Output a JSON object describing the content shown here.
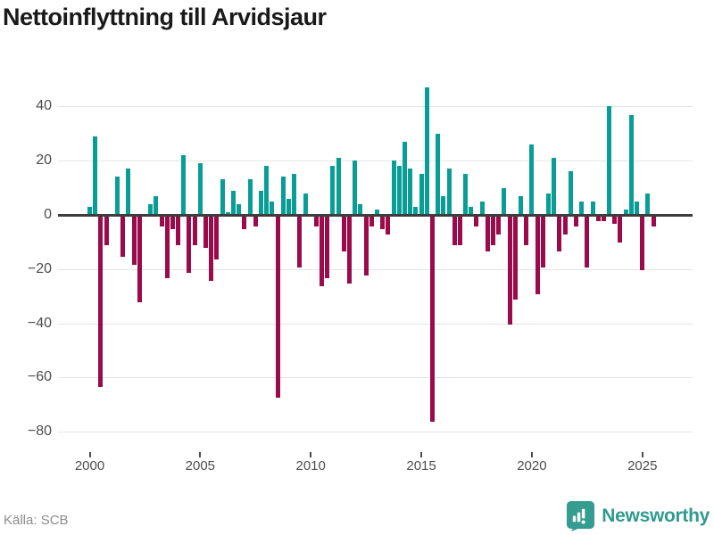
{
  "title": "Nettoinflyttning till Arvidsjaur",
  "source": "Källa: SCB",
  "brand": {
    "name": "Newsworthy",
    "color": "#2e9b8e"
  },
  "colors": {
    "positive": "#089e97",
    "negative": "#9b0a4b",
    "grid": "#e4e4e4",
    "zero_axis": "#3d3d3d",
    "title": "#1a1a1a"
  },
  "chart_data": {
    "type": "bar",
    "title": "Nettoinflyttning till Arvidsjaur",
    "xlabel": "",
    "ylabel": "",
    "period": "quarterly",
    "grid": true,
    "ylim": [
      -80,
      50
    ],
    "y_tick_values": [
      40,
      20,
      0,
      -20,
      -40,
      -60,
      -80
    ],
    "y_tick_labels": [
      "40",
      "20",
      "0",
      "−20",
      "−40",
      "−60",
      "−80"
    ],
    "x_tick_years": [
      2000,
      2005,
      2010,
      2015,
      2020,
      2025
    ],
    "x_tick_labels": [
      "2000",
      "2005",
      "2010",
      "2015",
      "2020",
      "2025"
    ],
    "series": [
      {
        "year": 2000,
        "q": [
          3,
          29,
          -63,
          -11
        ]
      },
      {
        "year": 2001,
        "q": [
          0,
          14,
          -15,
          17
        ]
      },
      {
        "year": 2002,
        "q": [
          -18,
          -32,
          0,
          4
        ]
      },
      {
        "year": 2003,
        "q": [
          7,
          -4,
          -23,
          -5
        ]
      },
      {
        "year": 2004,
        "q": [
          -11,
          22,
          -21,
          -11
        ]
      },
      {
        "year": 2005,
        "q": [
          19,
          -12,
          -24,
          -16
        ]
      },
      {
        "year": 2006,
        "q": [
          13,
          1,
          9,
          4
        ]
      },
      {
        "year": 2007,
        "q": [
          -5,
          13,
          -4,
          9
        ]
      },
      {
        "year": 2008,
        "q": [
          18,
          5,
          -67,
          14
        ]
      },
      {
        "year": 2009,
        "q": [
          6,
          15,
          -19,
          8
        ]
      },
      {
        "year": 2010,
        "q": [
          0,
          -4,
          -26,
          -23
        ]
      },
      {
        "year": 2011,
        "q": [
          18,
          21,
          -13,
          -25
        ]
      },
      {
        "year": 2012,
        "q": [
          20,
          4,
          -22,
          -4
        ]
      },
      {
        "year": 2013,
        "q": [
          2,
          -5,
          -7,
          20
        ]
      },
      {
        "year": 2014,
        "q": [
          18,
          27,
          17,
          3
        ]
      },
      {
        "year": 2015,
        "q": [
          15,
          47,
          -76,
          30
        ]
      },
      {
        "year": 2016,
        "q": [
          7,
          17,
          -11,
          -11
        ]
      },
      {
        "year": 2017,
        "q": [
          15,
          3,
          -4,
          5
        ]
      },
      {
        "year": 2018,
        "q": [
          -13,
          -11,
          -7,
          10
        ]
      },
      {
        "year": 2019,
        "q": [
          -40,
          -31,
          7,
          -11
        ]
      },
      {
        "year": 2020,
        "q": [
          26,
          -29,
          -19,
          8
        ]
      },
      {
        "year": 2021,
        "q": [
          21,
          -13,
          -7,
          16
        ]
      },
      {
        "year": 2022,
        "q": [
          -4,
          5,
          -19,
          5
        ]
      },
      {
        "year": 2023,
        "q": [
          -2,
          -2,
          40,
          -3
        ]
      },
      {
        "year": 2024,
        "q": [
          -10,
          2,
          37,
          5
        ]
      },
      {
        "year": 2025,
        "q": [
          -20,
          8,
          -4
        ]
      }
    ]
  }
}
